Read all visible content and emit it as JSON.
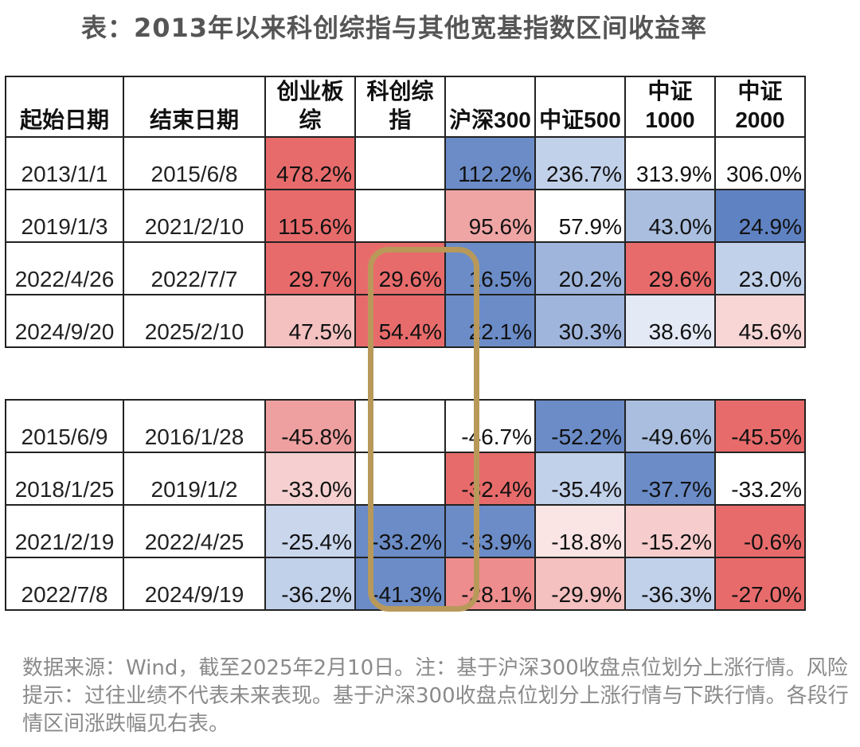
{
  "title": "表：2013年以来科创综指与其他宽基指数区间收益率",
  "columns": [
    "起始日期",
    "结束日期",
    "创业板综",
    "科创综指",
    "沪深300",
    "中证500",
    "中证1000",
    "中证2000"
  ],
  "up_rows": [
    {
      "start": "2013/1/1",
      "end": "2015/6/8",
      "cells": [
        "478.2%",
        "",
        "112.2%",
        "236.7%",
        "313.9%",
        "306.0%"
      ],
      "colors": [
        "#e86b6b",
        "#ffffff",
        "#6b8cc7",
        "#c2d1ea",
        "#ffffff",
        "#ffffff"
      ]
    },
    {
      "start": "2019/1/3",
      "end": "2021/2/10",
      "cells": [
        "115.6%",
        "",
        "95.6%",
        "57.9%",
        "43.0%",
        "24.9%"
      ],
      "colors": [
        "#e86b6b",
        "#ffffff",
        "#f0a5a5",
        "#ffffff",
        "#aabedf",
        "#5f82c2"
      ]
    },
    {
      "start": "2022/4/26",
      "end": "2022/7/7",
      "cells": [
        "29.7%",
        "29.6%",
        "16.5%",
        "20.2%",
        "29.6%",
        "23.0%"
      ],
      "colors": [
        "#e86b6b",
        "#e86b6b",
        "#6b8cc7",
        "#9fb5db",
        "#e86b6b",
        "#c2d1ea"
      ]
    },
    {
      "start": "2024/9/20",
      "end": "2025/2/10",
      "cells": [
        "47.5%",
        "54.4%",
        "22.1%",
        "30.3%",
        "38.6%",
        "45.6%"
      ],
      "colors": [
        "#f4c0c0",
        "#e86b6b",
        "#6b8cc7",
        "#9fb5db",
        "#e3e9f5",
        "#f8d6d6"
      ]
    }
  ],
  "down_rows": [
    {
      "start": "2015/6/9",
      "end": "2016/1/28",
      "cells": [
        "-45.8%",
        "",
        "-46.7%",
        "-52.2%",
        "-49.6%",
        "-45.5%"
      ],
      "colors": [
        "#eea0a0",
        "#ffffff",
        "#ffffff",
        "#6b8cc7",
        "#aabedf",
        "#e86b6b"
      ]
    },
    {
      "start": "2018/1/25",
      "end": "2019/1/2",
      "cells": [
        "-33.0%",
        "",
        "-32.4%",
        "-35.4%",
        "-37.7%",
        "-33.2%"
      ],
      "colors": [
        "#f6d0d0",
        "#ffffff",
        "#e86b6b",
        "#c2d1ea",
        "#6b8cc7",
        "#ffffff"
      ]
    },
    {
      "start": "2021/2/19",
      "end": "2022/4/25",
      "cells": [
        "-25.4%",
        "-33.2%",
        "-33.9%",
        "-18.8%",
        "-15.2%",
        "-0.6%"
      ],
      "colors": [
        "#c9d6ec",
        "#6b8cc7",
        "#6b8cc7",
        "#fbe4e4",
        "#f6cccc",
        "#e86b6b"
      ]
    },
    {
      "start": "2022/7/8",
      "end": "2024/9/19",
      "cells": [
        "-36.2%",
        "-41.3%",
        "-28.1%",
        "-29.9%",
        "-36.3%",
        "-27.0%"
      ],
      "colors": [
        "#c2d1ea",
        "#6b8cc7",
        "#ee8d8d",
        "#f4c0c0",
        "#c2d1ea",
        "#e86b6b"
      ]
    }
  ],
  "footnote": "数据来源：Wind，截至2025年2月10日。注：基于沪深300收盘点位划分上涨行情。风险提示：过往业绩不代表未来表现。基于沪深300收盘点位划分上涨行情与下跌行情。各段行情区间涨跌幅见右表。",
  "highlight_color": "#b8995a"
}
